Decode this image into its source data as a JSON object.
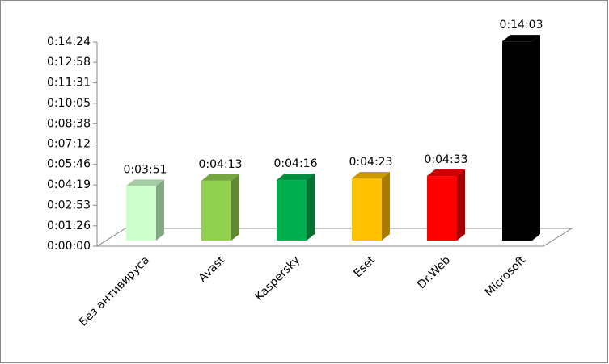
{
  "chart_data": {
    "type": "bar3d",
    "categories": [
      "Без антивируса",
      "Avast",
      "Kaspersky",
      "Eset",
      "Dr.Web",
      "Microsoft"
    ],
    "values": [
      231,
      253,
      256,
      263,
      273,
      843
    ],
    "value_labels": [
      "0:03:51",
      "0:04:13",
      "0:04:16",
      "0:04:23",
      "0:04:33",
      "0:14:03"
    ],
    "colors": [
      "#ccffcc",
      "#92d050",
      "#00b050",
      "#ffc000",
      "#ff0000",
      "#000000"
    ],
    "ylim": [
      0,
      864
    ],
    "yticks": [
      {
        "value": 0,
        "label": "0:00:00"
      },
      {
        "value": 86,
        "label": "0:01:26"
      },
      {
        "value": 173,
        "label": "0:02:53"
      },
      {
        "value": 259,
        "label": "0:04:19"
      },
      {
        "value": 346,
        "label": "0:05:46"
      },
      {
        "value": 432,
        "label": "0:07:12"
      },
      {
        "value": 518,
        "label": "0:08:38"
      },
      {
        "value": 605,
        "label": "0:10:05"
      },
      {
        "value": 691,
        "label": "0:11:31"
      },
      {
        "value": 778,
        "label": "0:12:58"
      },
      {
        "value": 864,
        "label": "0:14:24"
      }
    ]
  }
}
